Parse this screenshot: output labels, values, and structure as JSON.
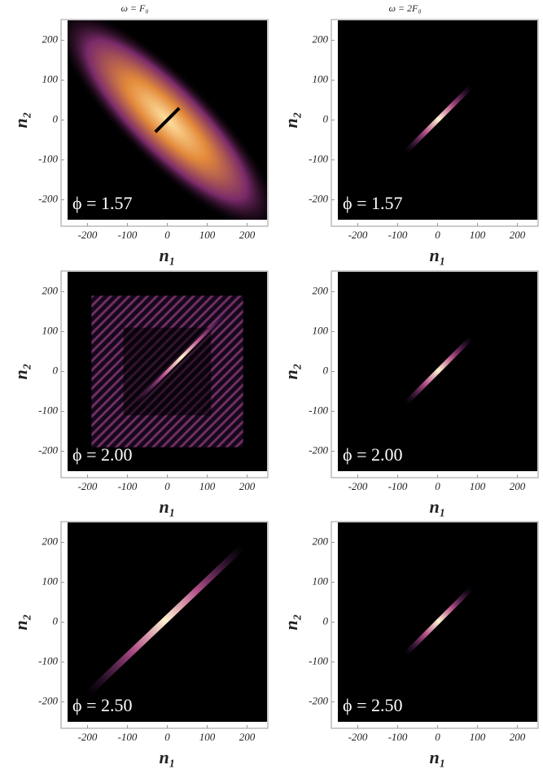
{
  "chart_data": [
    {
      "type": "heatmap",
      "title": "ω = F₀",
      "annotation": "ϕ = 1.57",
      "xlabel": "n₁",
      "ylabel": "n₂",
      "xlim": [
        -250,
        250
      ],
      "ylim": [
        -250,
        250
      ],
      "xticks": [
        -200,
        -100,
        0,
        100,
        200
      ],
      "yticks": [
        -200,
        -100,
        0,
        100,
        200
      ]
    },
    {
      "type": "heatmap",
      "title": "ω = 2F₀",
      "annotation": "ϕ = 1.57",
      "xlabel": "n₁",
      "ylabel": "n₂",
      "xlim": [
        -250,
        250
      ],
      "ylim": [
        -250,
        250
      ],
      "xticks": [
        -200,
        -100,
        0,
        100,
        200
      ],
      "yticks": [
        -200,
        -100,
        0,
        100,
        200
      ]
    },
    {
      "type": "heatmap",
      "annotation": "ϕ = 2.00",
      "xlabel": "n₁",
      "ylabel": "n₂",
      "xlim": [
        -250,
        250
      ],
      "ylim": [
        -250,
        250
      ],
      "xticks": [
        -200,
        -100,
        0,
        100,
        200
      ],
      "yticks": [
        -200,
        -100,
        0,
        100,
        200
      ]
    },
    {
      "type": "heatmap",
      "annotation": "ϕ = 2.00",
      "xlabel": "n₁",
      "ylabel": "n₂",
      "xlim": [
        -250,
        250
      ],
      "ylim": [
        -250,
        250
      ],
      "xticks": [
        -200,
        -100,
        0,
        100,
        200
      ],
      "yticks": [
        -200,
        -100,
        0,
        100,
        200
      ]
    },
    {
      "type": "heatmap",
      "annotation": "ϕ = 2.50",
      "xlabel": "n₁",
      "ylabel": "n₂",
      "xlim": [
        -250,
        250
      ],
      "ylim": [
        -250,
        250
      ],
      "xticks": [
        -200,
        -100,
        0,
        100,
        200
      ],
      "yticks": [
        -200,
        -100,
        0,
        100,
        200
      ]
    },
    {
      "type": "heatmap",
      "annotation": "ϕ = 2.50",
      "xlabel": "n₁",
      "ylabel": "n₂",
      "xlim": [
        -250,
        250
      ],
      "ylim": [
        -250,
        250
      ],
      "xticks": [
        -200,
        -100,
        0,
        100,
        200
      ],
      "yticks": [
        -200,
        -100,
        0,
        100,
        200
      ]
    }
  ]
}
